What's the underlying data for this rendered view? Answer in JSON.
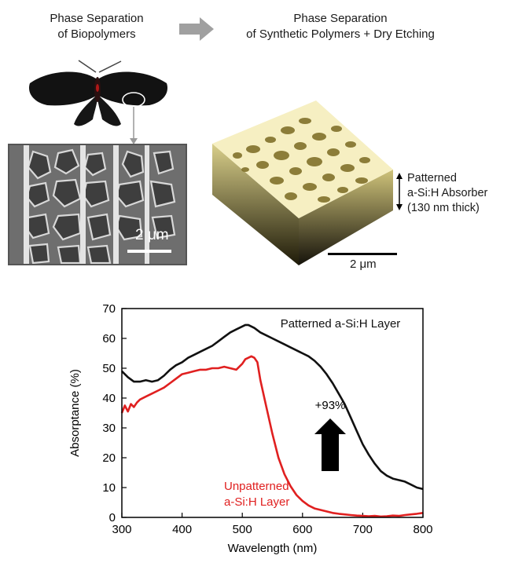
{
  "header": {
    "left_line1": "Phase Separation",
    "left_line2": "of Biopolymers",
    "right_line1": "Phase Separation",
    "right_line2": "of Synthetic Polymers + Dry Etching"
  },
  "sem": {
    "scale_label": "2 μm"
  },
  "afm": {
    "label_line1": "Patterned",
    "label_line2": "a-Si:H Absorber",
    "label_line3": "(130 nm thick)",
    "scale_label": "2 μm"
  },
  "colors": {
    "patterned": "#111111",
    "unpatterned": "#e02020",
    "afm_top": "#f6efc2"
  },
  "chart_data": {
    "type": "line",
    "xlabel": "Wavelength (nm)",
    "ylabel": "Absorptance (%)",
    "xlim": [
      300,
      800
    ],
    "ylim": [
      0,
      70
    ],
    "x_ticks": [
      300,
      400,
      500,
      600,
      700,
      800
    ],
    "y_ticks": [
      0,
      10,
      20,
      30,
      40,
      50,
      60,
      70
    ],
    "annotation": "+93%",
    "series": [
      {
        "name": "Patterned a-Si:H Layer",
        "label_lines": [
          "Patterned a-Si:H Layer"
        ],
        "color": "#111111",
        "x": [
          300,
          310,
          320,
          330,
          340,
          350,
          360,
          370,
          380,
          390,
          400,
          410,
          420,
          430,
          440,
          450,
          460,
          470,
          480,
          490,
          500,
          505,
          510,
          515,
          520,
          530,
          540,
          550,
          560,
          570,
          580,
          590,
          600,
          610,
          620,
          630,
          640,
          650,
          660,
          670,
          680,
          690,
          700,
          710,
          720,
          730,
          740,
          750,
          760,
          770,
          780,
          790,
          800
        ],
        "y": [
          49,
          47,
          45.5,
          45.5,
          46,
          45.5,
          46,
          47.5,
          49.5,
          51,
          52,
          53.5,
          54.5,
          55.5,
          56.5,
          57.5,
          59,
          60.5,
          62,
          63,
          64,
          64.5,
          64.5,
          64,
          63.5,
          62,
          61,
          60,
          59,
          58,
          57,
          56,
          55,
          54,
          52.5,
          50.5,
          48,
          45,
          41.5,
          38,
          33.5,
          29,
          24.5,
          21,
          18,
          15.5,
          14,
          13,
          12.5,
          12,
          11,
          10,
          9.5
        ]
      },
      {
        "name": "Unpatterned a-Si:H Layer",
        "label_lines": [
          "Unpatterned",
          "a-Si:H Layer"
        ],
        "color": "#e02020",
        "x": [
          300,
          305,
          310,
          315,
          320,
          325,
          330,
          340,
          350,
          360,
          370,
          380,
          390,
          400,
          410,
          420,
          430,
          440,
          450,
          460,
          470,
          480,
          490,
          500,
          505,
          510,
          515,
          520,
          525,
          530,
          540,
          550,
          560,
          570,
          580,
          590,
          600,
          610,
          620,
          630,
          640,
          650,
          660,
          670,
          680,
          690,
          700,
          710,
          720,
          730,
          740,
          750,
          760,
          770,
          780,
          790,
          800
        ],
        "y": [
          35,
          37.5,
          35.5,
          38,
          37,
          38.5,
          39.5,
          40.5,
          41.5,
          42.5,
          43.5,
          45,
          46.5,
          48,
          48.5,
          49,
          49.5,
          49.5,
          50,
          50,
          50.5,
          50,
          49.5,
          51.5,
          53,
          53.5,
          54,
          53.5,
          52,
          46,
          37,
          28,
          20,
          14.5,
          10.5,
          7.5,
          5.5,
          4,
          3,
          2.5,
          2,
          1.5,
          1.2,
          1,
          0.8,
          0.6,
          0.5,
          0.4,
          0.5,
          0.3,
          0.4,
          0.6,
          0.5,
          0.8,
          1,
          1.2,
          1.5
        ]
      }
    ]
  }
}
